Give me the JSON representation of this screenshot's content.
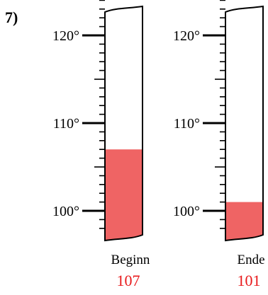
{
  "problem": {
    "number": "7)"
  },
  "scale": {
    "min": 98,
    "max": 124,
    "major_step": 10,
    "minor_step": 1,
    "major_values": [
      100,
      110,
      120
    ],
    "major_labels": [
      "100°",
      "110°",
      "120°"
    ]
  },
  "fill_color": "#ef6464",
  "value_color": "#e8191b",
  "thermometers": [
    {
      "name": "Beginn",
      "label": "Beginn",
      "value": 107,
      "value_text": "107"
    },
    {
      "name": "Ende",
      "label": "Ende",
      "value": 101,
      "value_text": "101"
    }
  ]
}
